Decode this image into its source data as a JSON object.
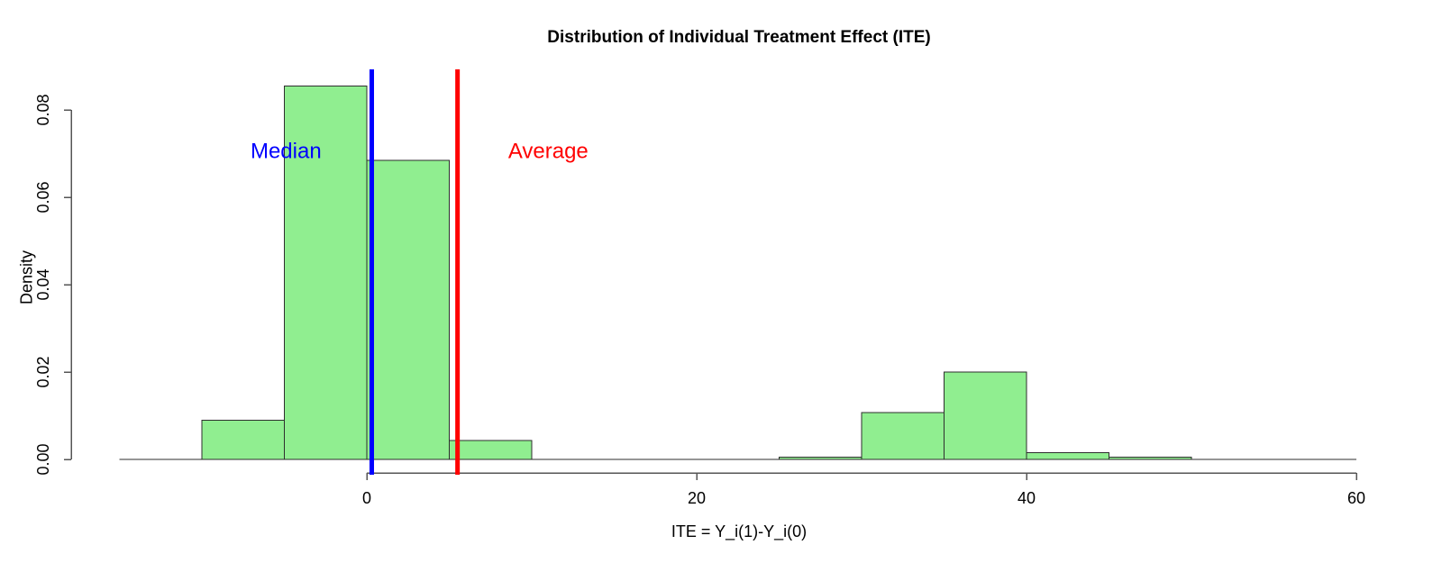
{
  "figure": {
    "title": "Distribution of Individual Treatment Effect (ITE)",
    "xlabel": "ITE = Y_i(1)-Y_i(0)",
    "ylabel": "Density"
  },
  "chart_data": {
    "type": "bar",
    "subtype": "histogram",
    "title": "Distribution of Individual Treatment Effect (ITE)",
    "xlabel": "ITE = Y_i(1)-Y_i(0)",
    "ylabel": "Density",
    "grid": false,
    "legend": "none",
    "xlim": [
      -18,
      63
    ],
    "ylim": [
      0,
      0.089
    ],
    "x_ticks": [
      0,
      20,
      40,
      60
    ],
    "x_tick_labels": [
      "0",
      "20",
      "40",
      "60"
    ],
    "y_ticks": [
      0.0,
      0.02,
      0.04,
      0.06,
      0.08
    ],
    "y_tick_labels": [
      "0.00",
      "0.02",
      "0.04",
      "0.06",
      "0.08"
    ],
    "bin_width": 5,
    "baseline_span": [
      -15,
      60
    ],
    "bins": [
      {
        "from": -10,
        "to": -5,
        "density": 0.009
      },
      {
        "from": -5,
        "to": 0,
        "density": 0.0855
      },
      {
        "from": 0,
        "to": 5,
        "density": 0.0685
      },
      {
        "from": 5,
        "to": 10,
        "density": 0.0043
      },
      {
        "from": 25,
        "to": 30,
        "density": 0.0005
      },
      {
        "from": 30,
        "to": 35,
        "density": 0.0107
      },
      {
        "from": 35,
        "to": 40,
        "density": 0.02
      },
      {
        "from": 40,
        "to": 45,
        "density": 0.0015
      },
      {
        "from": 45,
        "to": 50,
        "density": 0.0005
      }
    ],
    "vlines": [
      {
        "name": "median",
        "value": 0.3,
        "label": "Median",
        "color": "#0000ff",
        "label_pos": {
          "x": -4.9,
          "y": 0.0705
        }
      },
      {
        "name": "average",
        "value": 5.5,
        "label": "Average",
        "color": "#ff0000",
        "label_pos": {
          "x": 11.0,
          "y": 0.0705
        }
      }
    ],
    "bar_fill": "#90ee90",
    "bar_stroke": "#2e2e2e",
    "axis_color": "#555555",
    "text_color": "#000000"
  }
}
